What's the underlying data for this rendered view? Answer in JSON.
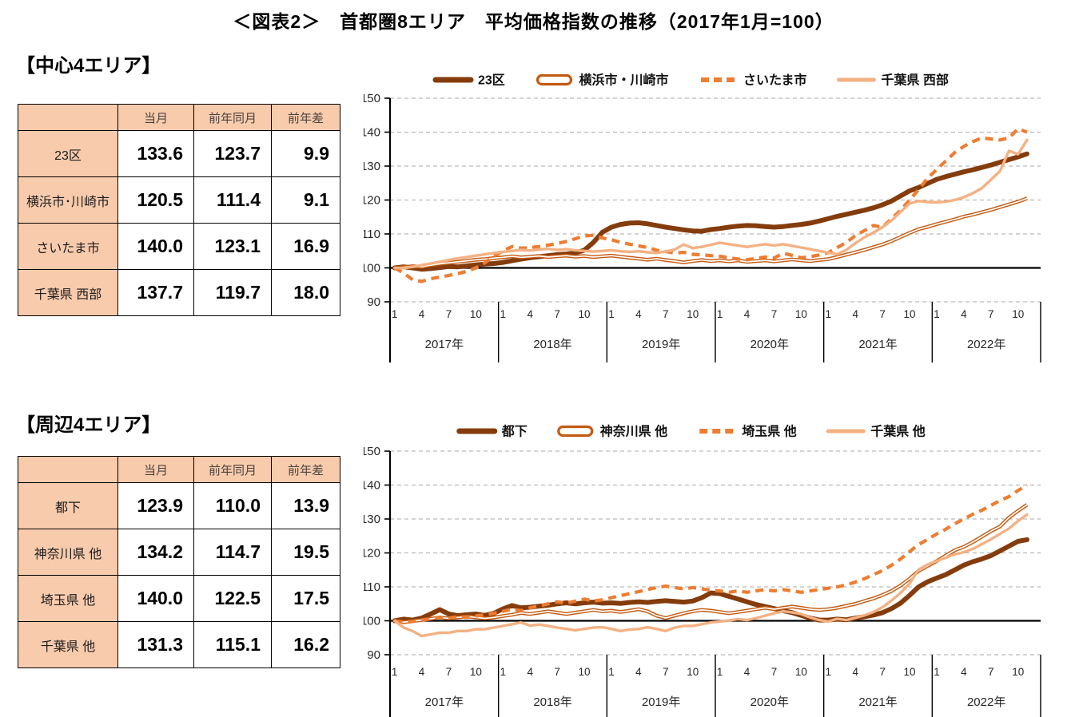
{
  "title": "＜図表2＞　首都圏8エリア　平均価格指数の推移（2017年1月=100）",
  "palette": {
    "dark_brown": "#843C0C",
    "brown_orange": "#C55A11",
    "orange": "#ED7D31",
    "light_orange": "#F4B183",
    "table_header_bg": "#F8CBAD",
    "gridline_gray": "#A9A9A9",
    "axis_black": "#000000"
  },
  "sections": [
    {
      "heading": "【中心4エリア】",
      "table": {
        "columns": [
          "",
          "当月",
          "前年同月",
          "前年差"
        ],
        "rows": [
          {
            "label": "23区",
            "values": [
              "133.6",
              "123.7",
              "9.9"
            ]
          },
          {
            "label": "横浜市･川崎市",
            "values": [
              "120.5",
              "111.4",
              "9.1"
            ]
          },
          {
            "label": "さいたま市",
            "values": [
              "140.0",
              "123.1",
              "16.9"
            ]
          },
          {
            "label": "千葉県 西部",
            "values": [
              "137.7",
              "119.7",
              "18.0"
            ]
          }
        ]
      }
    },
    {
      "heading": "【周辺4エリア】",
      "table": {
        "columns": [
          "",
          "当月",
          "前年同月",
          "前年差"
        ],
        "rows": [
          {
            "label": "都下",
            "values": [
              "123.9",
              "110.0",
              "13.9"
            ]
          },
          {
            "label": "神奈川県 他",
            "values": [
              "134.2",
              "114.7",
              "19.5"
            ]
          },
          {
            "label": "埼玉県 他",
            "values": [
              "140.0",
              "122.5",
              "17.5"
            ]
          },
          {
            "label": "千葉県 他",
            "values": [
              "131.3",
              "115.1",
              "16.2"
            ]
          }
        ]
      }
    }
  ],
  "chart_data": [
    {
      "type": "line",
      "title": "中心4エリア",
      "x_start": "2017-01",
      "x_end": "2022-11",
      "years": [
        "2017年",
        "2018年",
        "2019年",
        "2020年",
        "2021年",
        "2022年"
      ],
      "month_tick_labels": [
        "1",
        "4",
        "7",
        "10"
      ],
      "ylim": [
        90,
        150
      ],
      "yticks": [
        90,
        100,
        110,
        120,
        130,
        140,
        150
      ],
      "baseline": 100,
      "grid": "dashed-horizontal",
      "legend_position": "top",
      "series": [
        {
          "name": "23区",
          "color": "#843C0C",
          "line_style": "solid",
          "line_width": "thick",
          "values": [
            100.0,
            100.3,
            100.0,
            99.6,
            99.8,
            100.1,
            100.4,
            100.3,
            100.6,
            100.9,
            101.1,
            101.3,
            101.6,
            102.1,
            102.6,
            103.0,
            103.3,
            103.6,
            103.9,
            104.1,
            104.4,
            105.2,
            107.5,
            110.5,
            112.0,
            112.8,
            113.2,
            113.3,
            113.0,
            112.5,
            112.0,
            111.6,
            111.2,
            110.9,
            110.8,
            111.3,
            111.6,
            112.0,
            112.3,
            112.5,
            112.4,
            112.2,
            112.0,
            112.2,
            112.5,
            112.8,
            113.2,
            113.8,
            114.5,
            115.2,
            115.8,
            116.4,
            117.0,
            117.7,
            118.6,
            119.7,
            121.2,
            122.7,
            123.7,
            124.9,
            126.1,
            126.9,
            127.6,
            128.3,
            128.9,
            129.6,
            130.3,
            131.1,
            131.9,
            132.7,
            133.6
          ]
        },
        {
          "name": "横浜市・川崎市",
          "color": "#C55A11",
          "line_style": "double",
          "line_width": "medium",
          "values": [
            100.0,
            100.2,
            100.5,
            100.3,
            100.8,
            101.2,
            101.5,
            101.8,
            102.1,
            102.4,
            102.6,
            102.9,
            103.1,
            103.4,
            103.1,
            103.3,
            103.5,
            103.2,
            103.4,
            103.6,
            103.3,
            103.5,
            103.2,
            103.4,
            103.6,
            103.3,
            103.0,
            102.7,
            102.4,
            102.7,
            102.3,
            102.0,
            101.6,
            102.0,
            102.3,
            102.0,
            102.2,
            101.9,
            102.2,
            101.8,
            102.0,
            102.2,
            101.9,
            102.2,
            102.5,
            102.2,
            102.0,
            102.3,
            102.6,
            103.2,
            103.9,
            104.6,
            105.3,
            106.1,
            106.9,
            107.9,
            109.1,
            110.3,
            111.4,
            112.1,
            112.9,
            113.6,
            114.3,
            115.1,
            115.7,
            116.4,
            117.1,
            117.9,
            118.7,
            119.5,
            120.5
          ]
        },
        {
          "name": "さいたま市",
          "color": "#ED7D31",
          "line_style": "dashed",
          "line_width": "medium",
          "values": [
            100.0,
            98.5,
            96.5,
            96.0,
            96.8,
            97.3,
            97.8,
            98.3,
            99.0,
            100.0,
            101.5,
            103.5,
            105.0,
            106.3,
            105.8,
            106.0,
            106.3,
            106.7,
            107.2,
            107.8,
            108.6,
            109.4,
            109.6,
            108.8,
            108.3,
            107.5,
            107.0,
            106.5,
            106.0,
            105.2,
            104.8,
            104.4,
            104.6,
            104.0,
            103.8,
            103.6,
            103.4,
            103.0,
            102.6,
            102.4,
            102.8,
            103.2,
            102.9,
            104.3,
            103.7,
            103.0,
            103.3,
            103.8,
            104.5,
            106.0,
            107.5,
            109.5,
            111.0,
            112.5,
            112.0,
            114.5,
            117.0,
            120.0,
            123.1,
            126.5,
            129.0,
            131.5,
            134.0,
            135.8,
            137.2,
            138.3,
            138.0,
            137.7,
            138.3,
            141.0,
            140.0
          ]
        },
        {
          "name": "千葉県 西部",
          "color": "#F4B183",
          "line_style": "solid",
          "line_width": "light",
          "values": [
            100.0,
            99.9,
            100.3,
            100.8,
            101.3,
            101.8,
            102.3,
            102.8,
            103.2,
            103.6,
            104.0,
            104.4,
            104.7,
            105.0,
            105.3,
            105.1,
            105.4,
            105.6,
            105.3,
            105.5,
            105.2,
            105.0,
            104.8,
            105.0,
            105.2,
            104.9,
            104.7,
            104.9,
            104.6,
            104.4,
            104.8,
            105.4,
            106.9,
            105.8,
            106.2,
            106.8,
            107.4,
            107.0,
            106.6,
            106.2,
            106.6,
            107.0,
            106.6,
            107.0,
            106.5,
            106.0,
            105.5,
            105.0,
            104.5,
            104.0,
            105.3,
            107.3,
            109.0,
            110.4,
            112.0,
            114.0,
            116.5,
            119.0,
            119.7,
            119.4,
            119.3,
            119.5,
            120.0,
            120.8,
            122.0,
            123.5,
            126.0,
            128.5,
            134.5,
            133.5,
            137.7
          ]
        }
      ]
    },
    {
      "type": "line",
      "title": "周辺4エリア",
      "x_start": "2017-01",
      "x_end": "2022-11",
      "years": [
        "2017年",
        "2018年",
        "2019年",
        "2020年",
        "2021年",
        "2022年"
      ],
      "month_tick_labels": [
        "1",
        "4",
        "7",
        "10"
      ],
      "ylim": [
        90,
        150
      ],
      "yticks": [
        90,
        100,
        110,
        120,
        130,
        140,
        150
      ],
      "baseline": 100,
      "grid": "dashed-horizontal",
      "legend_position": "top",
      "series": [
        {
          "name": "都下",
          "color": "#843C0C",
          "line_style": "solid",
          "line_width": "thick",
          "values": [
            100.0,
            100.5,
            100.2,
            100.8,
            102.0,
            103.3,
            102.0,
            101.5,
            101.8,
            102.0,
            101.6,
            102.2,
            103.5,
            104.5,
            103.8,
            104.0,
            104.3,
            104.6,
            105.0,
            105.3,
            105.0,
            105.3,
            105.5,
            105.2,
            105.3,
            105.1,
            105.4,
            105.6,
            105.4,
            105.7,
            105.9,
            105.7,
            105.5,
            105.8,
            106.8,
            108.2,
            108.0,
            107.2,
            106.4,
            105.6,
            104.8,
            104.2,
            103.6,
            103.0,
            102.4,
            101.6,
            100.8,
            100.2,
            100.2,
            100.5,
            100.3,
            100.8,
            101.2,
            101.7,
            102.4,
            103.6,
            105.2,
            107.5,
            110.0,
            111.5,
            112.6,
            113.6,
            115.0,
            116.4,
            117.4,
            118.2,
            119.2,
            120.6,
            122.0,
            123.4,
            123.9
          ]
        },
        {
          "name": "神奈川県 他",
          "color": "#C55A11",
          "line_style": "double",
          "line_width": "medium",
          "values": [
            100.0,
            99.6,
            99.9,
            100.2,
            100.6,
            101.0,
            100.7,
            101.0,
            101.3,
            101.0,
            100.7,
            101.0,
            101.4,
            101.8,
            102.3,
            102.0,
            102.4,
            102.8,
            102.4,
            102.0,
            102.4,
            102.8,
            103.2,
            102.8,
            103.0,
            102.6,
            103.0,
            103.4,
            102.8,
            101.5,
            100.8,
            101.5,
            102.2,
            102.8,
            103.2,
            103.0,
            102.6,
            102.2,
            102.6,
            103.0,
            103.4,
            103.8,
            103.4,
            103.8,
            104.2,
            103.8,
            103.4,
            103.2,
            103.4,
            103.8,
            104.4,
            105.0,
            105.8,
            106.6,
            107.6,
            108.8,
            110.4,
            112.4,
            114.7,
            116.2,
            117.6,
            119.2,
            120.8,
            121.8,
            123.2,
            124.8,
            126.4,
            127.8,
            130.4,
            132.4,
            134.2
          ]
        },
        {
          "name": "埼玉県 他",
          "color": "#ED7D31",
          "line_style": "dashed",
          "line_width": "medium",
          "values": [
            100.0,
            99.5,
            99.8,
            100.2,
            100.6,
            101.0,
            100.8,
            101.2,
            101.0,
            101.4,
            101.8,
            102.2,
            102.8,
            103.4,
            103.0,
            103.8,
            104.4,
            105.0,
            105.6,
            105.2,
            105.8,
            106.4,
            105.8,
            106.2,
            106.8,
            107.4,
            108.0,
            108.6,
            109.2,
            109.8,
            110.2,
            109.8,
            109.4,
            109.8,
            109.4,
            109.0,
            108.8,
            108.4,
            108.8,
            108.4,
            108.8,
            109.2,
            108.8,
            109.2,
            108.8,
            108.4,
            108.8,
            109.2,
            109.6,
            110.0,
            110.6,
            111.4,
            112.4,
            113.6,
            114.8,
            116.4,
            118.2,
            120.4,
            122.5,
            124.0,
            125.6,
            127.0,
            128.6,
            130.0,
            131.4,
            132.6,
            134.0,
            135.4,
            136.6,
            138.4,
            140.0
          ]
        },
        {
          "name": "千葉県 他",
          "color": "#F4B183",
          "line_style": "solid",
          "line_width": "light",
          "values": [
            100.0,
            98.0,
            97.0,
            95.5,
            96.0,
            96.5,
            96.5,
            97.0,
            97.0,
            97.5,
            97.5,
            98.0,
            98.5,
            99.0,
            99.5,
            98.6,
            98.9,
            98.5,
            98.0,
            97.6,
            97.2,
            97.6,
            98.0,
            98.1,
            97.6,
            97.0,
            97.4,
            97.6,
            98.1,
            97.6,
            97.0,
            98.0,
            98.5,
            98.5,
            99.0,
            99.5,
            99.8,
            100.1,
            100.5,
            100.2,
            100.8,
            101.5,
            102.2,
            102.8,
            102.5,
            102.0,
            101.0,
            100.2,
            99.8,
            100.6,
            100.2,
            100.9,
            101.6,
            102.6,
            104.0,
            106.0,
            108.2,
            111.0,
            115.1,
            116.6,
            117.6,
            118.6,
            119.6,
            120.2,
            121.2,
            122.6,
            124.0,
            125.6,
            127.2,
            129.4,
            131.3
          ]
        }
      ]
    }
  ]
}
